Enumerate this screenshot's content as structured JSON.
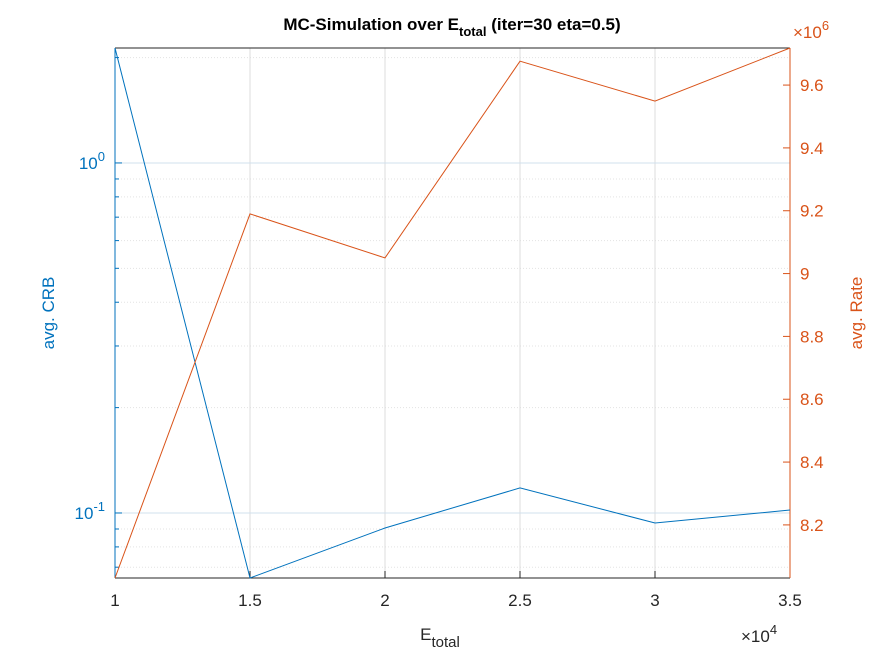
{
  "chart_data": {
    "type": "line",
    "title": "MC-Simulation over E",
    "title_subscript": "total",
    "title_suffix": " (iter=30 eta=0.5)",
    "xlabel": "E",
    "xlabel_subscript": "total",
    "ylabel": "avg. CRB",
    "y2label": "avg. Rate",
    "x_multiplier": "×10",
    "x_multiplier_exp": "4",
    "y2_multiplier": "×10",
    "y2_multiplier_exp": "6",
    "x": [
      10000,
      15000,
      20000,
      25000,
      30000,
      35000
    ],
    "xlim": [
      10000,
      35000
    ],
    "xticks": [
      {
        "value": 10000,
        "label": "1"
      },
      {
        "value": 15000,
        "label": "1.5"
      },
      {
        "value": 20000,
        "label": "2"
      },
      {
        "value": 25000,
        "label": "2.5"
      },
      {
        "value": 30000,
        "label": "3"
      },
      {
        "value": 35000,
        "label": "3.5"
      }
    ],
    "ylim": [
      0.0652,
      2.13
    ],
    "yscale": "log",
    "yticks": [
      {
        "value": 0.1,
        "label": "10",
        "exponent": "-1"
      },
      {
        "value": 1,
        "label": "10",
        "exponent": "0"
      }
    ],
    "y2lim": [
      8031000,
      9718000
    ],
    "y2ticks": [
      {
        "value": 8200000,
        "label": "8.2"
      },
      {
        "value": 8400000,
        "label": "8.4"
      },
      {
        "value": 8600000,
        "label": "8.6"
      },
      {
        "value": 8800000,
        "label": "8.8"
      },
      {
        "value": 9000000,
        "label": "9"
      },
      {
        "value": 9200000,
        "label": "9.2"
      },
      {
        "value": 9400000,
        "label": "9.4"
      },
      {
        "value": 9600000,
        "label": "9.6"
      }
    ],
    "grid": true,
    "minor_grid": true,
    "y_color": "#0072BD",
    "y2_color": "#D95319",
    "series": [
      {
        "color": "#0072BD",
        "values": [
          2.13,
          0.0652,
          0.0906,
          0.1179,
          0.0936,
          0.102
        ]
      },
      {
        "color": "#D95319",
        "axis": "y2",
        "values": [
          8031000,
          9190000,
          9050000,
          9676000,
          9549000,
          9718000
        ]
      }
    ]
  }
}
